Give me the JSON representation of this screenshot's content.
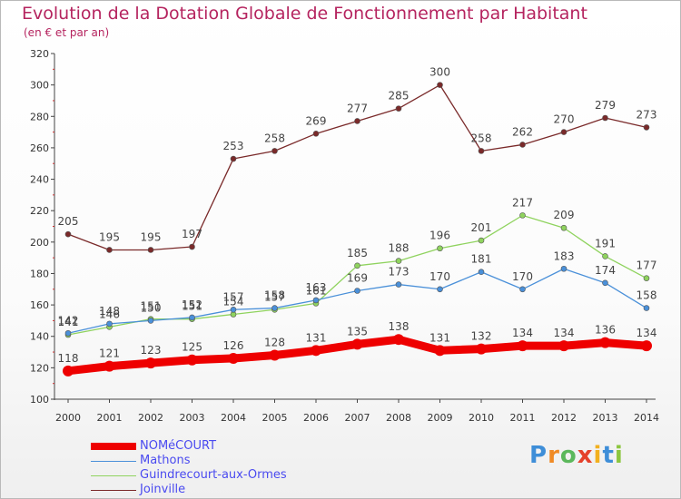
{
  "title": "Evolution de la Dotation Globale de Fonctionnement par Habitant",
  "subtitle": "(en € et par an)",
  "logo_text": "Proxiti",
  "chart_data": {
    "type": "line",
    "x": [
      "2000",
      "2001",
      "2002",
      "2003",
      "2004",
      "2005",
      "2006",
      "2007",
      "2008",
      "2009",
      "2010",
      "2011",
      "2012",
      "2013",
      "2014"
    ],
    "ylim": [
      100,
      320
    ],
    "yticks": [
      100,
      120,
      140,
      160,
      180,
      200,
      220,
      240,
      260,
      280,
      300,
      320
    ],
    "grid": false,
    "legend_position": "bottom-left",
    "series": [
      {
        "name": "NOMéCOURT",
        "color": "#ee0000",
        "values": [
          118,
          121,
          123,
          125,
          126,
          128,
          131,
          135,
          138,
          131,
          132,
          134,
          134,
          136,
          134
        ]
      },
      {
        "name": "Mathons",
        "color": "#4a90d9",
        "values": [
          142,
          148,
          150,
          152,
          157,
          158,
          163,
          169,
          173,
          170,
          181,
          170,
          183,
          174,
          158
        ]
      },
      {
        "name": "Guindrecourt-aux-Ormes",
        "color": "#8fd35e",
        "values": [
          141,
          146,
          151,
          151,
          154,
          157,
          161,
          185,
          188,
          196,
          201,
          217,
          209,
          191,
          177
        ]
      },
      {
        "name": "Joinville",
        "color": "#7a2a2a",
        "values": [
          205,
          195,
          195,
          197,
          253,
          258,
          269,
          277,
          285,
          300,
          258,
          262,
          270,
          279,
          273
        ]
      }
    ]
  }
}
